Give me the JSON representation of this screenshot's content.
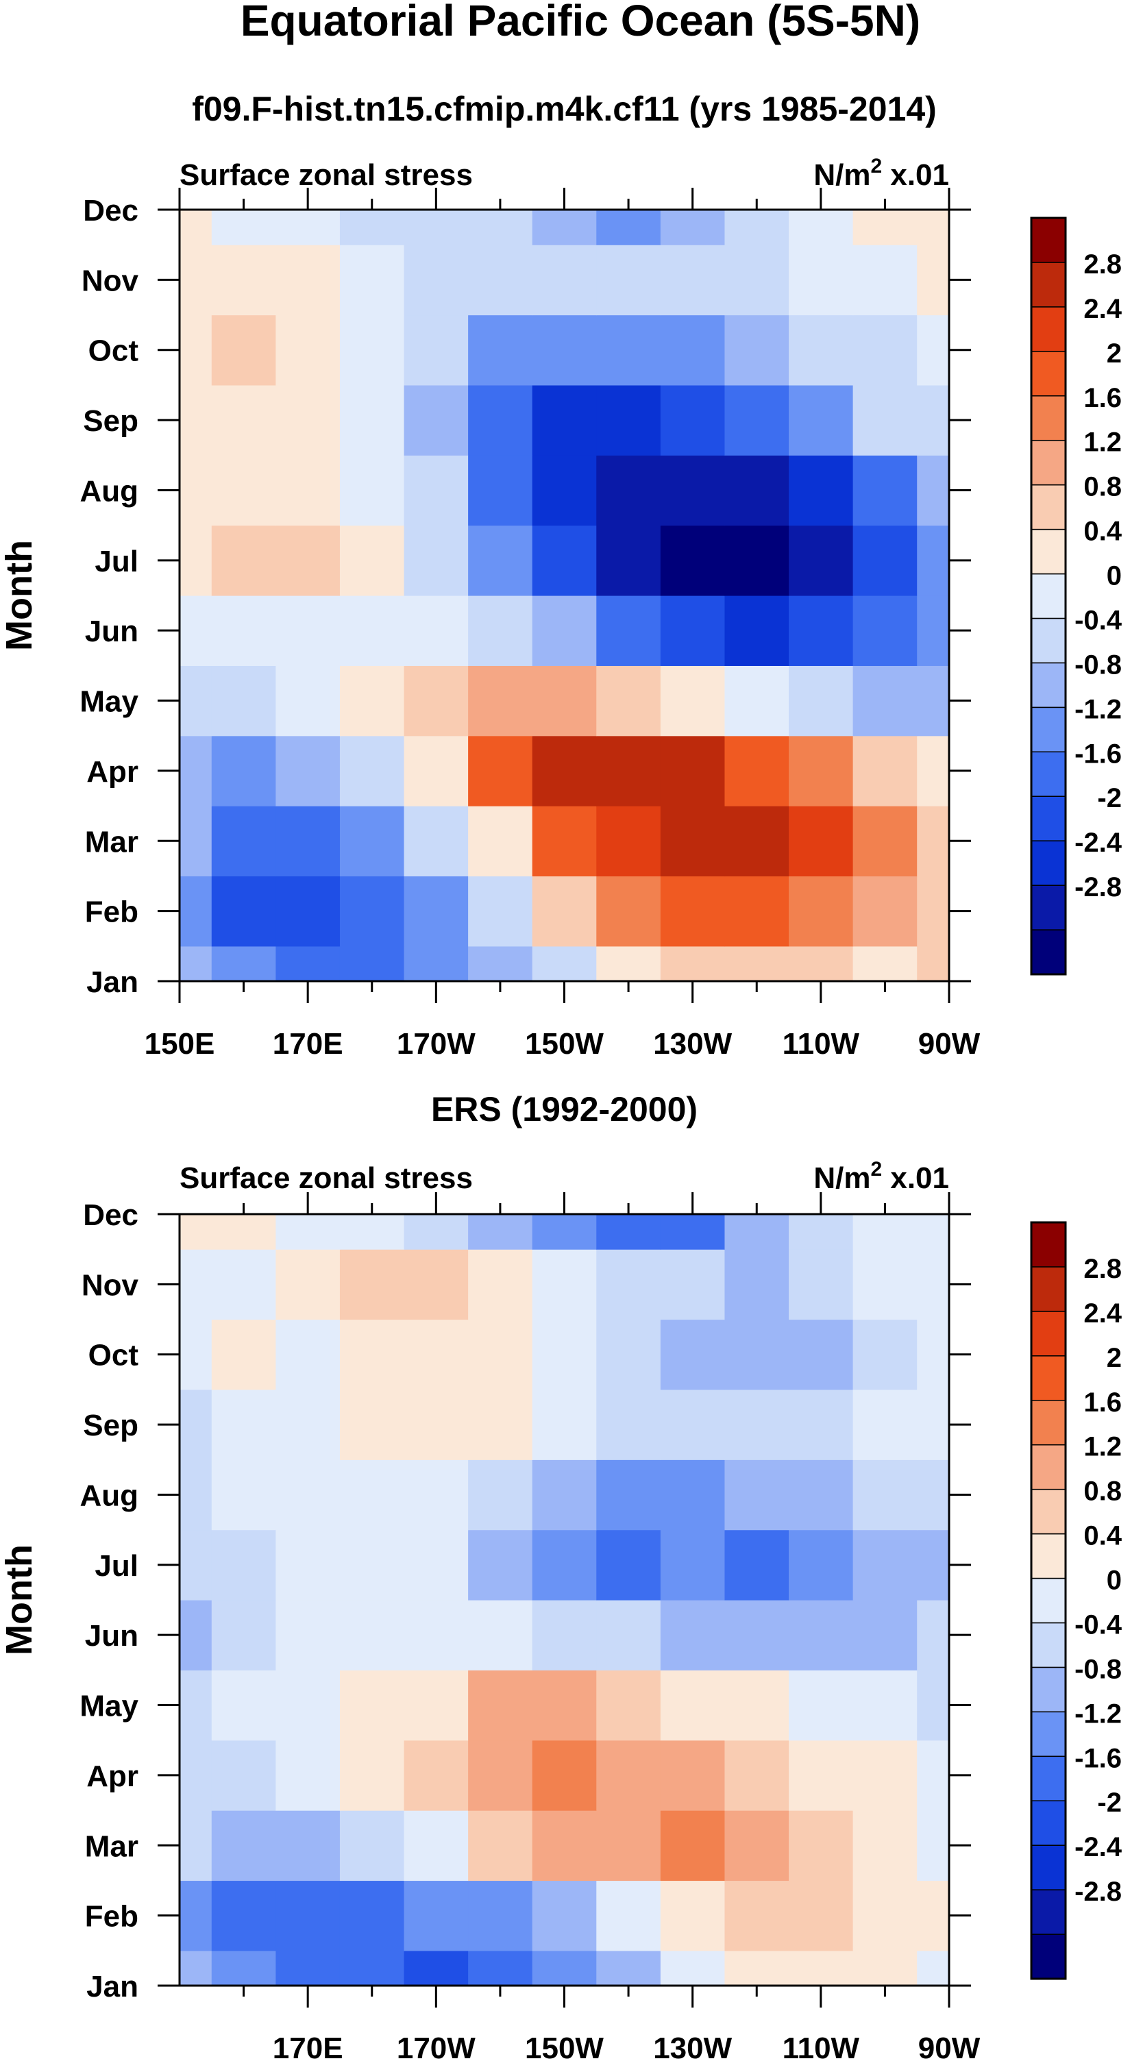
{
  "figure": {
    "title": "Equatorial Pacific Ocean (5S-5N)"
  },
  "colorbar_labels": [
    "2.8",
    "2.4",
    "2",
    "1.6",
    "1.2",
    "0.8",
    "0.4",
    "0",
    "-0.4",
    "-0.8",
    "-1.2",
    "-1.6",
    "-2",
    "-2.4",
    "-2.8"
  ],
  "palette": [
    "#00007a",
    "#0a1aa8",
    "#0a33d4",
    "#1f4fe6",
    "#3d6ef0",
    "#6a93f5",
    "#9cb6f7",
    "#c9daf9",
    "#e2ecfb",
    "#fbe8d8",
    "#f9ccb2",
    "#f5a785",
    "#f2814f",
    "#f05a22",
    "#e23e12",
    "#bd2a0c",
    "#8b0000"
  ],
  "chart_data": [
    {
      "type": "heatmap",
      "title": "f09.F-hist.tn15.cfmip.m4k.cf11 (yrs 1985-2014)",
      "left_label": "Surface zonal stress",
      "right_label": "N/m",
      "right_label_sup": "2",
      "right_label_suffix": " x.01",
      "ylabel": "Month",
      "y_ticks": [
        "Dec",
        "Nov",
        "Oct",
        "Sep",
        "Aug",
        "Jul",
        "Jun",
        "May",
        "Apr",
        "Mar",
        "Feb",
        "Jan"
      ],
      "x_ticks": [
        "150E",
        "170E",
        "170W",
        "150W",
        "130W",
        "110W",
        "90W"
      ],
      "x_range_deg_east": [
        150,
        270
      ],
      "contour_levels": [
        -2.8,
        -2.4,
        -2,
        -1.6,
        -1.2,
        -0.8,
        -0.4,
        0,
        0.4,
        0.8,
        1.2,
        1.6,
        2,
        2.4,
        2.8
      ],
      "longitudes_deg_east": [
        150,
        160,
        170,
        180,
        190,
        200,
        210,
        220,
        230,
        240,
        250,
        260,
        270
      ],
      "months": [
        "Jan",
        "Feb",
        "Mar",
        "Apr",
        "May",
        "Jun",
        "Jul",
        "Aug",
        "Sep",
        "Oct",
        "Nov",
        "Dec"
      ],
      "values": [
        [
          -0.8,
          -1.2,
          -1.5,
          -1.4,
          -1.2,
          -0.8,
          -0.2,
          0.4,
          0.8,
          1.0,
          0.9,
          0.7,
          0.8
        ],
        [
          -0.9,
          -1.7,
          -1.8,
          -1.5,
          -1.0,
          -0.3,
          0.8,
          1.6,
          2.2,
          2.2,
          1.9,
          1.4,
          0.9
        ],
        [
          -0.8,
          -1.4,
          -1.5,
          -1.0,
          -0.3,
          0.7,
          2.0,
          2.7,
          3.0,
          3.0,
          2.4,
          1.6,
          0.8
        ],
        [
          -0.6,
          -0.9,
          -0.8,
          -0.4,
          0.6,
          2.0,
          2.8,
          3.0,
          2.8,
          2.3,
          1.7,
          1.0,
          0.4
        ],
        [
          -0.2,
          -0.3,
          0.0,
          0.4,
          1.0,
          1.5,
          1.4,
          1.0,
          0.6,
          0.2,
          -0.2,
          -0.5,
          -0.7
        ],
        [
          0.1,
          0.2,
          0.3,
          0.2,
          0.0,
          -0.3,
          -0.8,
          -1.3,
          -1.8,
          -2.1,
          -2.0,
          -1.6,
          -1.0
        ],
        [
          0.5,
          0.9,
          0.8,
          0.4,
          -0.2,
          -1.1,
          -2.0,
          -2.8,
          -3.0,
          -2.9,
          -2.6,
          -1.9,
          -1.1
        ],
        [
          0.6,
          0.6,
          0.5,
          0.2,
          -0.4,
          -1.4,
          -2.2,
          -2.6,
          -2.7,
          -2.5,
          -2.1,
          -1.3,
          -0.6
        ],
        [
          0.5,
          0.6,
          0.5,
          0.1,
          -0.7,
          -1.6,
          -2.1,
          -2.1,
          -1.9,
          -1.5,
          -1.0,
          -0.4,
          -0.1
        ],
        [
          0.6,
          0.8,
          0.6,
          0.2,
          -0.4,
          -1.0,
          -1.2,
          -1.1,
          -0.9,
          -0.6,
          -0.3,
          -0.1,
          0.1
        ],
        [
          0.7,
          0.6,
          0.5,
          0.2,
          -0.1,
          -0.2,
          -0.3,
          -0.3,
          -0.2,
          -0.1,
          0.1,
          0.3,
          0.5
        ],
        [
          0.5,
          0.3,
          0.1,
          -0.1,
          -0.2,
          -0.4,
          -0.8,
          -0.9,
          -0.6,
          -0.3,
          0.1,
          0.5,
          0.7
        ]
      ]
    },
    {
      "type": "heatmap",
      "title": "ERS (1992-2000)",
      "left_label": "Surface zonal stress",
      "right_label": "N/m",
      "right_label_sup": "2",
      "right_label_suffix": " x.01",
      "ylabel": "Month",
      "y_ticks": [
        "Dec",
        "Nov",
        "Oct",
        "Sep",
        "Aug",
        "Jul",
        "Jun",
        "May",
        "Apr",
        "Mar",
        "Feb",
        "Jan"
      ],
      "x_ticks": [
        "170E",
        "170W",
        "150W",
        "130W",
        "110W",
        "90W"
      ],
      "x_range_deg_east": [
        150,
        270
      ],
      "contour_levels": [
        -2.8,
        -2.4,
        -2,
        -1.6,
        -1.2,
        -0.8,
        -0.4,
        0,
        0.4,
        0.8,
        1.2,
        1.6,
        2,
        2.4,
        2.8
      ],
      "longitudes_deg_east": [
        150,
        160,
        170,
        180,
        190,
        200,
        210,
        220,
        230,
        240,
        250,
        260,
        270
      ],
      "months": [
        "Jan",
        "Feb",
        "Mar",
        "Apr",
        "May",
        "Jun",
        "Jul",
        "Aug",
        "Sep",
        "Oct",
        "Nov",
        "Dec"
      ],
      "values": [
        [
          -0.5,
          -0.9,
          -1.3,
          -1.6,
          -1.7,
          -1.6,
          -1.2,
          -0.6,
          0.0,
          0.4,
          0.6,
          0.5,
          0.3
        ],
        [
          -0.9,
          -1.4,
          -1.5,
          -1.4,
          -1.2,
          -0.9,
          -0.5,
          0.0,
          0.5,
          0.8,
          0.8,
          0.6,
          0.4
        ],
        [
          -0.3,
          -0.7,
          -0.5,
          -0.1,
          0.3,
          0.8,
          1.2,
          1.4,
          1.6,
          1.4,
          1.0,
          0.6,
          0.3
        ],
        [
          -0.1,
          -0.2,
          0.1,
          0.4,
          0.9,
          1.3,
          1.7,
          1.5,
          1.2,
          0.9,
          0.6,
          0.4,
          0.2
        ],
        [
          -0.1,
          0.1,
          0.2,
          0.4,
          0.7,
          1.3,
          1.2,
          1.0,
          0.7,
          0.5,
          0.3,
          0.1,
          -0.1
        ],
        [
          -0.5,
          -0.3,
          0.1,
          0.3,
          0.3,
          0.1,
          -0.2,
          -0.4,
          -0.5,
          -0.6,
          -0.7,
          -0.8,
          -0.4
        ],
        [
          -0.3,
          -0.1,
          0.1,
          0.3,
          0.1,
          -0.5,
          -1.2,
          -1.5,
          -1.1,
          -1.5,
          -1.1,
          -0.8,
          -0.5
        ],
        [
          -0.2,
          0.0,
          0.2,
          0.3,
          0.1,
          -0.2,
          -0.6,
          -0.9,
          -0.9,
          -0.7,
          -0.5,
          -0.3,
          -0.1
        ],
        [
          -0.1,
          0.2,
          0.3,
          0.4,
          0.6,
          0.5,
          0.3,
          -0.2,
          -0.3,
          -0.2,
          -0.1,
          0.1,
          0.2
        ],
        [
          0.1,
          0.4,
          0.3,
          0.4,
          0.6,
          0.7,
          0.2,
          -0.3,
          -0.5,
          -0.7,
          -0.6,
          -0.2,
          0.3
        ],
        [
          0.2,
          0.3,
          0.5,
          1.0,
          0.8,
          0.4,
          0.2,
          -0.2,
          -0.4,
          -0.5,
          -0.3,
          0.0,
          0.2
        ],
        [
          0.6,
          0.4,
          0.2,
          0.1,
          -0.1,
          -0.6,
          -1.2,
          -1.6,
          -1.3,
          -0.7,
          -0.3,
          0.3,
          0.3
        ]
      ]
    }
  ]
}
